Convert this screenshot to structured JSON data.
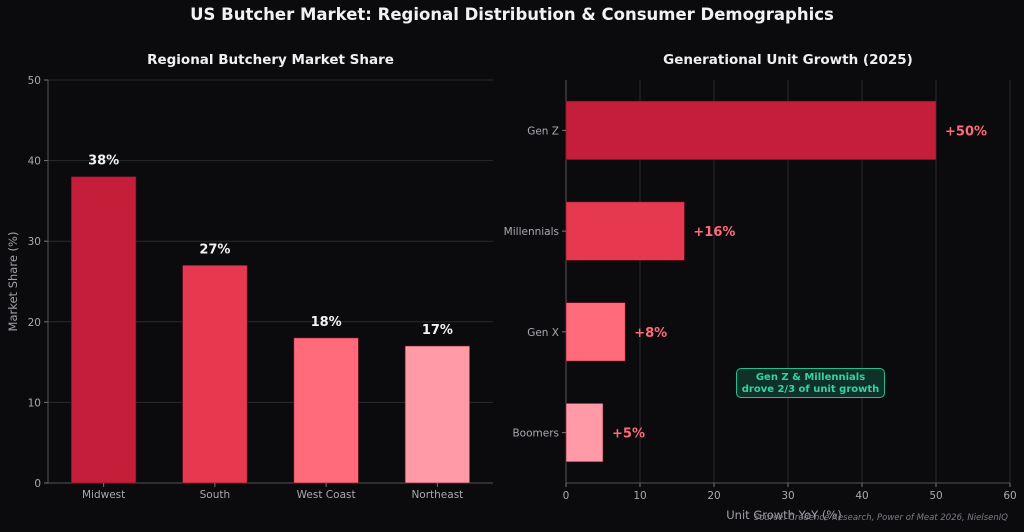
{
  "suptitle": "US Butcher Market: Regional Distribution & Consumer Demographics",
  "source": "Source: Credence Research, Power of Meat 2026, NielsenIQ",
  "colors": {
    "background": "#0b0b0e",
    "bars": [
      "#c41e3a",
      "#e63950",
      "#ff6b7a",
      "#ff9aa6"
    ],
    "value_label_right": "#ff6b7a",
    "annotation": "#2fd6a0"
  },
  "chart_data": [
    {
      "type": "bar",
      "title": "Regional Butchery Market Share",
      "categories": [
        "Midwest",
        "South",
        "West Coast",
        "Northeast"
      ],
      "values": [
        38,
        27,
        18,
        17
      ],
      "value_labels": [
        "38%",
        "27%",
        "18%",
        "17%"
      ],
      "xlabel": "",
      "ylabel": "Market Share (%)",
      "ylim": [
        0,
        50
      ],
      "yticks": [
        0,
        10,
        20,
        30,
        40,
        50
      ],
      "grid": true
    },
    {
      "type": "bar",
      "orientation": "horizontal",
      "title": "Generational Unit Growth (2025)",
      "categories": [
        "Gen Z",
        "Millennials",
        "Gen X",
        "Boomers"
      ],
      "values": [
        50,
        16,
        8,
        5
      ],
      "value_labels": [
        "+50%",
        "+16%",
        "+8%",
        "+5%"
      ],
      "xlabel": "Unit Growth YoY (%)",
      "ylabel": "",
      "xlim": [
        0,
        60
      ],
      "xticks": [
        0,
        10,
        20,
        30,
        40,
        50,
        60
      ],
      "grid": true,
      "annotation": "Gen Z & Millennials\ndrove 2/3 of unit growth"
    }
  ]
}
